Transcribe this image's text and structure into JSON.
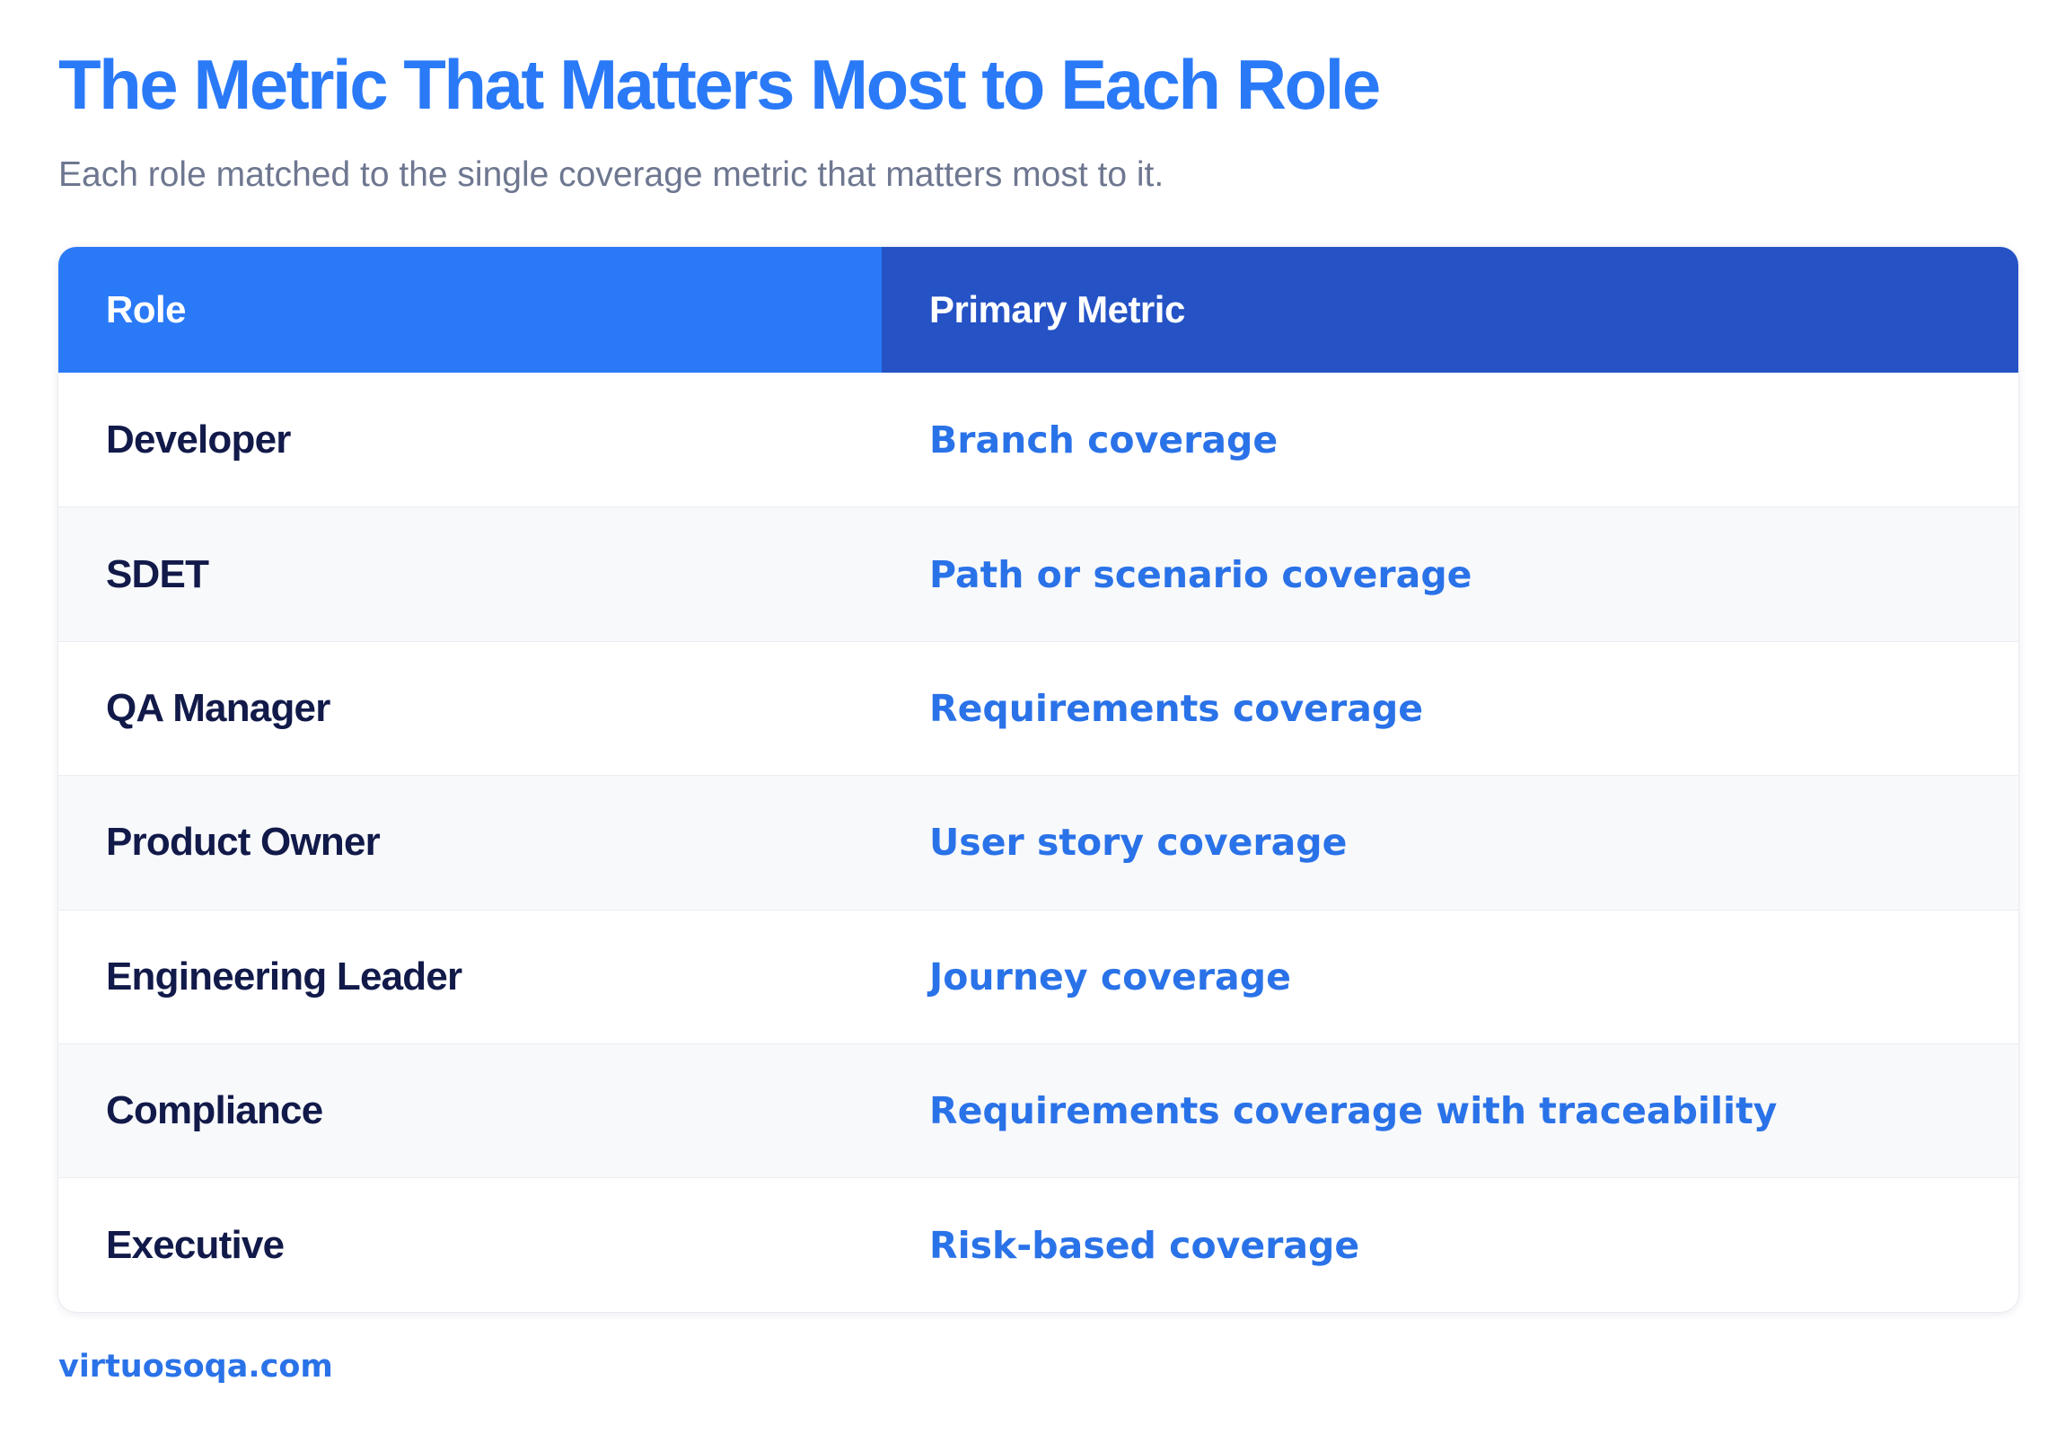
{
  "header": {
    "title": "The Metric That Matters Most to Each Role",
    "subtitle": "Each role matched to the single coverage metric that matters most to it."
  },
  "table": {
    "columns": [
      "Role",
      "Primary Metric"
    ],
    "rows": [
      {
        "role": "Developer",
        "metric": "Branch coverage"
      },
      {
        "role": "SDET",
        "metric": "Path or scenario coverage"
      },
      {
        "role": "QA Manager",
        "metric": "Requirements coverage"
      },
      {
        "role": "Product Owner",
        "metric": "User story coverage"
      },
      {
        "role": "Engineering Leader",
        "metric": "Journey coverage"
      },
      {
        "role": "Compliance",
        "metric": "Requirements coverage with traceability"
      },
      {
        "role": "Executive",
        "metric": "Risk-based coverage"
      }
    ]
  },
  "footer": {
    "source": "virtuosoqa.com"
  },
  "colors": {
    "title": "#2a7af8",
    "header_role": "#2a7af8",
    "header_metric": "#2553c6",
    "role_text": "#121a4a",
    "metric_text": "#2a72e8",
    "subtitle": "#6e7790"
  }
}
